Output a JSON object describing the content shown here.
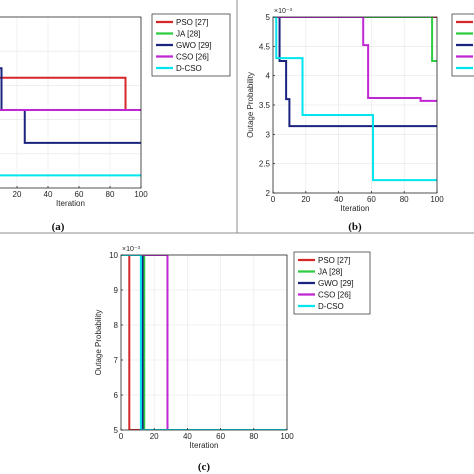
{
  "chart_data": [
    {
      "panel": "(a)",
      "type": "line",
      "xlabel": "Iteration",
      "ylabel": "",
      "xlim": [
        0,
        100
      ],
      "ylim": [
        0,
        10
      ],
      "x_ticks": [
        "20",
        "40",
        "60",
        "80",
        "100"
      ],
      "y_ticks": [],
      "y_exponent": "",
      "grid": true,
      "legend_position": "top-right",
      "series": [
        {
          "name": "PSO [27]",
          "color": "#d62728",
          "x": [
            0,
            90,
            90,
            100
          ],
          "y": [
            6.45,
            6.45,
            4.56,
            4.56
          ]
        },
        {
          "name": "JA [28]",
          "color": "#2ecc40",
          "x": [
            0,
            100
          ],
          "y": [
            4.56,
            4.56
          ]
        },
        {
          "name": "GWO [29]",
          "color": "#1a237e",
          "x": [
            0,
            10,
            10,
            25,
            25,
            100
          ],
          "y": [
            7.0,
            7.0,
            4.56,
            4.56,
            2.64,
            2.64
          ]
        },
        {
          "name": "CSO [26]",
          "color": "#c026d3",
          "x": [
            0,
            100
          ],
          "y": [
            4.56,
            4.56
          ]
        },
        {
          "name": "D-CSO",
          "color": "#00e5ee",
          "x": [
            0,
            100
          ],
          "y": [
            0.74,
            0.74
          ]
        }
      ]
    },
    {
      "panel": "(b)",
      "type": "line",
      "xlabel": "Iteration",
      "ylabel": "Outage Probability",
      "xlim": [
        0,
        100
      ],
      "ylim": [
        2,
        5
      ],
      "x_ticks": [
        "0",
        "20",
        "40",
        "60",
        "80",
        "100"
      ],
      "y_ticks": [
        "2",
        "2.5",
        "3",
        "3.5",
        "4",
        "4.5",
        "5"
      ],
      "y_exponent": "×10⁻³",
      "grid": true,
      "legend_position": "top-right",
      "series": [
        {
          "name": "PSO [27]",
          "color": "#d62728",
          "x": [
            0,
            100
          ],
          "y": [
            5.0,
            5.0
          ]
        },
        {
          "name": "JA [28]",
          "color": "#2ecc40",
          "x": [
            0,
            97,
            97,
            100
          ],
          "y": [
            5.0,
            5.0,
            4.25,
            4.25
          ]
        },
        {
          "name": "GWO [29]",
          "color": "#1a237e",
          "x": [
            0,
            4,
            4,
            8,
            8,
            10,
            10,
            100
          ],
          "y": [
            5.0,
            5.0,
            4.25,
            4.25,
            3.6,
            3.6,
            3.14,
            3.14
          ]
        },
        {
          "name": "CSO [26]",
          "color": "#c026d3",
          "x": [
            0,
            55,
            55,
            58,
            58,
            85,
            85,
            90,
            90,
            100
          ],
          "y": [
            5.0,
            5.0,
            4.52,
            4.52,
            3.62,
            3.62,
            3.62,
            3.62,
            3.57,
            3.57
          ]
        },
        {
          "name": "D-CSO",
          "color": "#00e5ee",
          "x": [
            0,
            2,
            2,
            18,
            18,
            61,
            61,
            100
          ],
          "y": [
            5.0,
            5.0,
            4.3,
            4.3,
            3.33,
            3.33,
            2.22,
            2.22
          ]
        }
      ]
    },
    {
      "panel": "(c)",
      "type": "line",
      "xlabel": "Iteration",
      "ylabel": "Outage Probability",
      "xlim": [
        0,
        100
      ],
      "ylim": [
        5,
        10
      ],
      "x_ticks": [
        "0",
        "20",
        "40",
        "60",
        "80",
        "100"
      ],
      "y_ticks": [
        "5",
        "6",
        "7",
        "8",
        "9",
        "10"
      ],
      "y_exponent": "×10⁻³",
      "grid": true,
      "legend_position": "top-right",
      "series": [
        {
          "name": "PSO [27]",
          "color": "#d62728",
          "x": [
            0,
            5,
            5,
            100
          ],
          "y": [
            10,
            10,
            5,
            5
          ]
        },
        {
          "name": "JA [28]",
          "color": "#2ecc40",
          "x": [
            0,
            14,
            14,
            100
          ],
          "y": [
            10,
            10,
            5,
            5
          ]
        },
        {
          "name": "GWO [29]",
          "color": "#1a237e",
          "x": [
            0,
            13,
            13,
            100
          ],
          "y": [
            10,
            10,
            5,
            5
          ]
        },
        {
          "name": "CSO [26]",
          "color": "#c026d3",
          "x": [
            0,
            28,
            28,
            100
          ],
          "y": [
            10,
            10,
            5,
            5
          ]
        },
        {
          "name": "D-CSO",
          "color": "#00e5ee",
          "x": [
            0,
            3,
            3,
            12,
            12,
            100
          ],
          "y": [
            10,
            10,
            10,
            10,
            5,
            5
          ]
        }
      ]
    }
  ]
}
